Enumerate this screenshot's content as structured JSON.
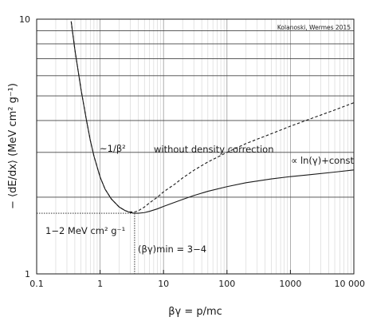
{
  "chart_data": {
    "type": "line",
    "xlabel": "βγ = p/mc",
    "ylabel": "− ⟨dE/dx⟩  (MeV cm² g⁻¹)",
    "xscale": "log",
    "yscale": "log",
    "xlim": [
      0.1,
      10000
    ],
    "ylim": [
      1,
      10
    ],
    "grid": true,
    "x_ticks": [
      "0.1",
      "1",
      "10",
      "100",
      "1000",
      "10 000"
    ],
    "y_ticks": [
      "1",
      "10"
    ],
    "credit": "Kolanoski, Wermes 2015",
    "series": [
      {
        "style": "solid",
        "x": [
          0.35,
          0.4,
          0.5,
          0.6,
          0.7,
          0.8,
          1.0,
          1.2,
          1.5,
          2.0,
          2.5,
          3.0,
          3.5,
          4.0,
          5.0,
          6.0,
          8.0,
          10,
          15,
          20,
          30,
          50,
          100,
          200,
          500,
          1000,
          2000,
          5000,
          10000
        ],
        "y": [
          9.8,
          7.6,
          5.3,
          4.1,
          3.35,
          2.9,
          2.4,
          2.15,
          1.97,
          1.83,
          1.77,
          1.74,
          1.73,
          1.73,
          1.74,
          1.76,
          1.8,
          1.84,
          1.91,
          1.96,
          2.03,
          2.11,
          2.2,
          2.28,
          2.36,
          2.41,
          2.45,
          2.51,
          2.56
        ]
      },
      {
        "style": "dashed",
        "x": [
          0.35,
          0.4,
          0.5,
          0.6,
          0.7,
          0.8,
          1.0,
          1.2,
          1.5,
          2.0,
          2.5,
          3.0,
          3.5,
          4.0,
          5.0,
          6.0,
          8.0,
          10,
          15,
          20,
          30,
          50,
          100,
          200,
          500,
          1000,
          2000,
          5000,
          10000
        ],
        "y": [
          9.8,
          7.6,
          5.3,
          4.1,
          3.35,
          2.9,
          2.4,
          2.15,
          1.97,
          1.83,
          1.77,
          1.75,
          1.75,
          1.77,
          1.83,
          1.9,
          2.0,
          2.1,
          2.25,
          2.38,
          2.55,
          2.75,
          3.0,
          3.25,
          3.55,
          3.8,
          4.05,
          4.4,
          4.7
        ]
      }
    ],
    "annotations": {
      "inv_beta2": "~1/β²",
      "no_density": "without density correction",
      "log_const": "∝ ln(γ)+const",
      "min_value": "1−2 MeV cm² g⁻¹",
      "min_position": "(βγ)min = 3−4"
    },
    "reference_lines": {
      "min_y": 1.73,
      "min_x": 3.5
    }
  }
}
